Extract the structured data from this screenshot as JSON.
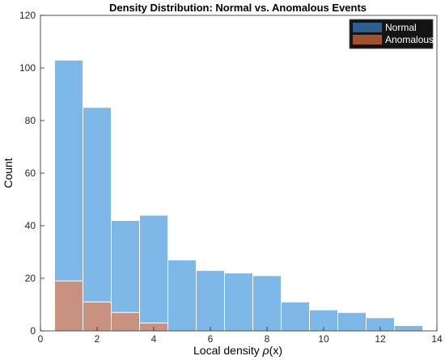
{
  "chart_data": {
    "type": "bar",
    "subtype": "histogram",
    "title": "Density Distribution: Normal vs. Anomalous Events",
    "xlabel_prefix": "Local density ",
    "xlabel_symbol": "ρ",
    "xlabel_suffix": "(x)",
    "ylabel": "Count",
    "xlim": [
      0,
      14
    ],
    "ylim": [
      0,
      120
    ],
    "xticks": [
      0,
      2,
      4,
      6,
      8,
      10,
      12,
      14
    ],
    "yticks": [
      0,
      20,
      40,
      60,
      80,
      100,
      120
    ],
    "grid": false,
    "legend_position": "top-right",
    "series": [
      {
        "name": "Normal",
        "color": "#7DB8E8",
        "legend_color": "#2E5F8F",
        "bins": [
          {
            "x0": 0.5,
            "x1": 1.5,
            "count": 103
          },
          {
            "x0": 1.5,
            "x1": 2.5,
            "count": 85
          },
          {
            "x0": 2.5,
            "x1": 3.5,
            "count": 42
          },
          {
            "x0": 3.5,
            "x1": 4.5,
            "count": 44
          },
          {
            "x0": 4.5,
            "x1": 5.5,
            "count": 27
          },
          {
            "x0": 5.5,
            "x1": 6.5,
            "count": 23
          },
          {
            "x0": 6.5,
            "x1": 7.5,
            "count": 22
          },
          {
            "x0": 7.5,
            "x1": 8.5,
            "count": 21
          },
          {
            "x0": 8.5,
            "x1": 9.5,
            "count": 11
          },
          {
            "x0": 9.5,
            "x1": 10.5,
            "count": 8
          },
          {
            "x0": 10.5,
            "x1": 11.5,
            "count": 7
          },
          {
            "x0": 11.5,
            "x1": 12.5,
            "count": 5
          },
          {
            "x0": 12.5,
            "x1": 13.5,
            "count": 2
          }
        ]
      },
      {
        "name": "Anomalous",
        "color": "#C99280",
        "legend_color": "#A0522D",
        "bins": [
          {
            "x0": 0.5,
            "x1": 1.5,
            "count": 19
          },
          {
            "x0": 1.5,
            "x1": 2.5,
            "count": 11
          },
          {
            "x0": 2.5,
            "x1": 3.5,
            "count": 7
          },
          {
            "x0": 3.5,
            "x1": 4.5,
            "count": 3
          }
        ]
      }
    ]
  }
}
